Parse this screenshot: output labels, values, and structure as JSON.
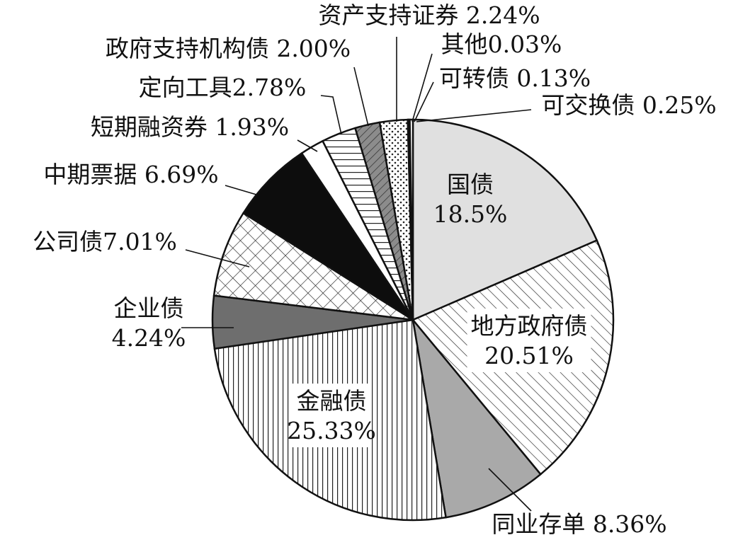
{
  "chart_data": {
    "type": "pie",
    "title": "",
    "slices": [
      {
        "name": "国债",
        "value": 18.5,
        "value_label": "18.5%",
        "pattern": "solid-light",
        "color": "#e0e0e0"
      },
      {
        "name": "地方政府债",
        "value": 20.51,
        "value_label": "20.51%",
        "pattern": "diagonal-hatch",
        "color": "#ffffff"
      },
      {
        "name": "同业存单",
        "value": 8.36,
        "value_label": "8.36%",
        "pattern": "solid-mid",
        "color": "#a9a9a9"
      },
      {
        "name": "金融债",
        "value": 25.33,
        "value_label": "25.33%",
        "pattern": "vertical-lines",
        "color": "#ffffff"
      },
      {
        "name": "企业债",
        "value": 4.24,
        "value_label": "4.24%",
        "pattern": "solid-dark",
        "color": "#6e6e6e"
      },
      {
        "name": "公司债",
        "value": 7.01,
        "value_label": "7.01%",
        "pattern": "crosshatch",
        "color": "#ffffff"
      },
      {
        "name": "中期票据",
        "value": 6.69,
        "value_label": "6.69%",
        "pattern": "solid-black",
        "color": "#0d0d0d"
      },
      {
        "name": "短期融资券",
        "value": 1.93,
        "value_label": "1.93%",
        "pattern": "solid-white",
        "color": "#ffffff"
      },
      {
        "name": "定向工具",
        "value": 2.78,
        "value_label": "2.78%",
        "pattern": "horizontal-lines",
        "color": "#ffffff"
      },
      {
        "name": "政府支持机构债",
        "value": 2.0,
        "value_label": "2.00%",
        "pattern": "dark-diagonal",
        "color": "#8c8c8c"
      },
      {
        "name": "资产支持证券",
        "value": 2.24,
        "value_label": "2.24%",
        "pattern": "dots",
        "color": "#ffffff"
      },
      {
        "name": "其他",
        "value": 0.03,
        "value_label": "0.03%",
        "pattern": "solid-black",
        "color": "#0d0d0d"
      },
      {
        "name": "可转债",
        "value": 0.13,
        "value_label": "0.13%",
        "pattern": "solid-black",
        "color": "#0d0d0d"
      },
      {
        "name": "可交换债",
        "value": 0.25,
        "value_label": "0.25%",
        "pattern": "solid-white",
        "color": "#ffffff"
      }
    ],
    "labels": [
      {
        "lines": [
          "国债",
          "18.5%"
        ]
      },
      {
        "lines": [
          "地方政府债",
          "20.51%"
        ]
      },
      {
        "lines": [
          "同业存单  8.36%"
        ]
      },
      {
        "lines": [
          "金融债",
          "25.33%"
        ]
      },
      {
        "lines": [
          "企业债",
          "4.24%"
        ]
      },
      {
        "lines": [
          "公司债7.01%"
        ]
      },
      {
        "lines": [
          "中期票据  6.69%"
        ]
      },
      {
        "lines": [
          "短期融资券  1.93%"
        ]
      },
      {
        "lines": [
          "定向工具2.78%"
        ]
      },
      {
        "lines": [
          "政府支持机构债  2.00%"
        ]
      },
      {
        "lines": [
          "资产支持证券  2.24%"
        ]
      },
      {
        "lines": [
          "其他0.03%"
        ]
      },
      {
        "lines": [
          "可转债  0.13%"
        ]
      },
      {
        "lines": [
          "可交换债  0.25%"
        ]
      }
    ],
    "legend": "none",
    "start_angle_deg": 0,
    "direction": "clockwise"
  }
}
